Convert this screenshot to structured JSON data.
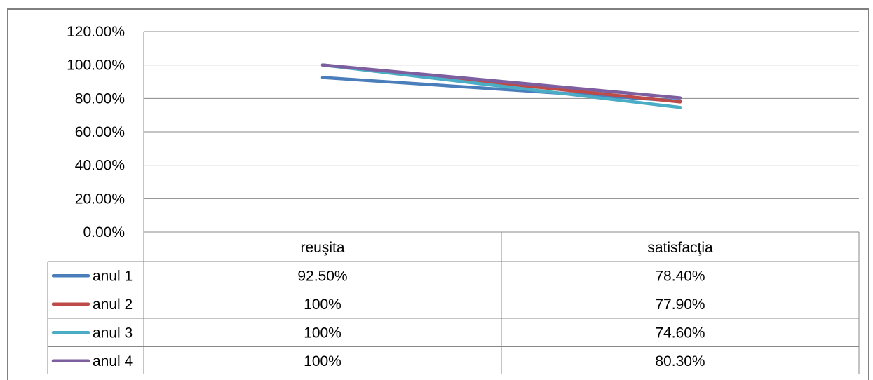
{
  "chart_data": {
    "type": "line",
    "title": "",
    "xlabel": "",
    "ylabel": "",
    "categories": [
      "reuşita",
      "satisfacţia"
    ],
    "ylim": [
      0,
      1.2
    ],
    "yticks": [
      0,
      0.2,
      0.4,
      0.6,
      0.8,
      1.0,
      1.2
    ],
    "ytick_labels": [
      "0.00%",
      "20.00%",
      "40.00%",
      "60.00%",
      "80.00%",
      "100.00%",
      "120.00%"
    ],
    "grid": true,
    "legend": "data-table",
    "series": [
      {
        "name": "anul 1",
        "values": [
          0.925,
          0.784
        ],
        "labels": [
          "92.50%",
          "78.40%"
        ],
        "color": "#4a7ebb"
      },
      {
        "name": "anul 2",
        "values": [
          1.0,
          0.779
        ],
        "labels": [
          "100%",
          "77.90%"
        ],
        "color": "#be4b48"
      },
      {
        "name": "anul 3",
        "values": [
          1.0,
          0.746
        ],
        "labels": [
          "100%",
          "74.60%"
        ],
        "color": "#4bacc6"
      },
      {
        "name": "anul 4",
        "values": [
          1.0,
          0.803
        ],
        "labels": [
          "100%",
          "80.30%"
        ],
        "color": "#7d5fa0"
      }
    ]
  }
}
